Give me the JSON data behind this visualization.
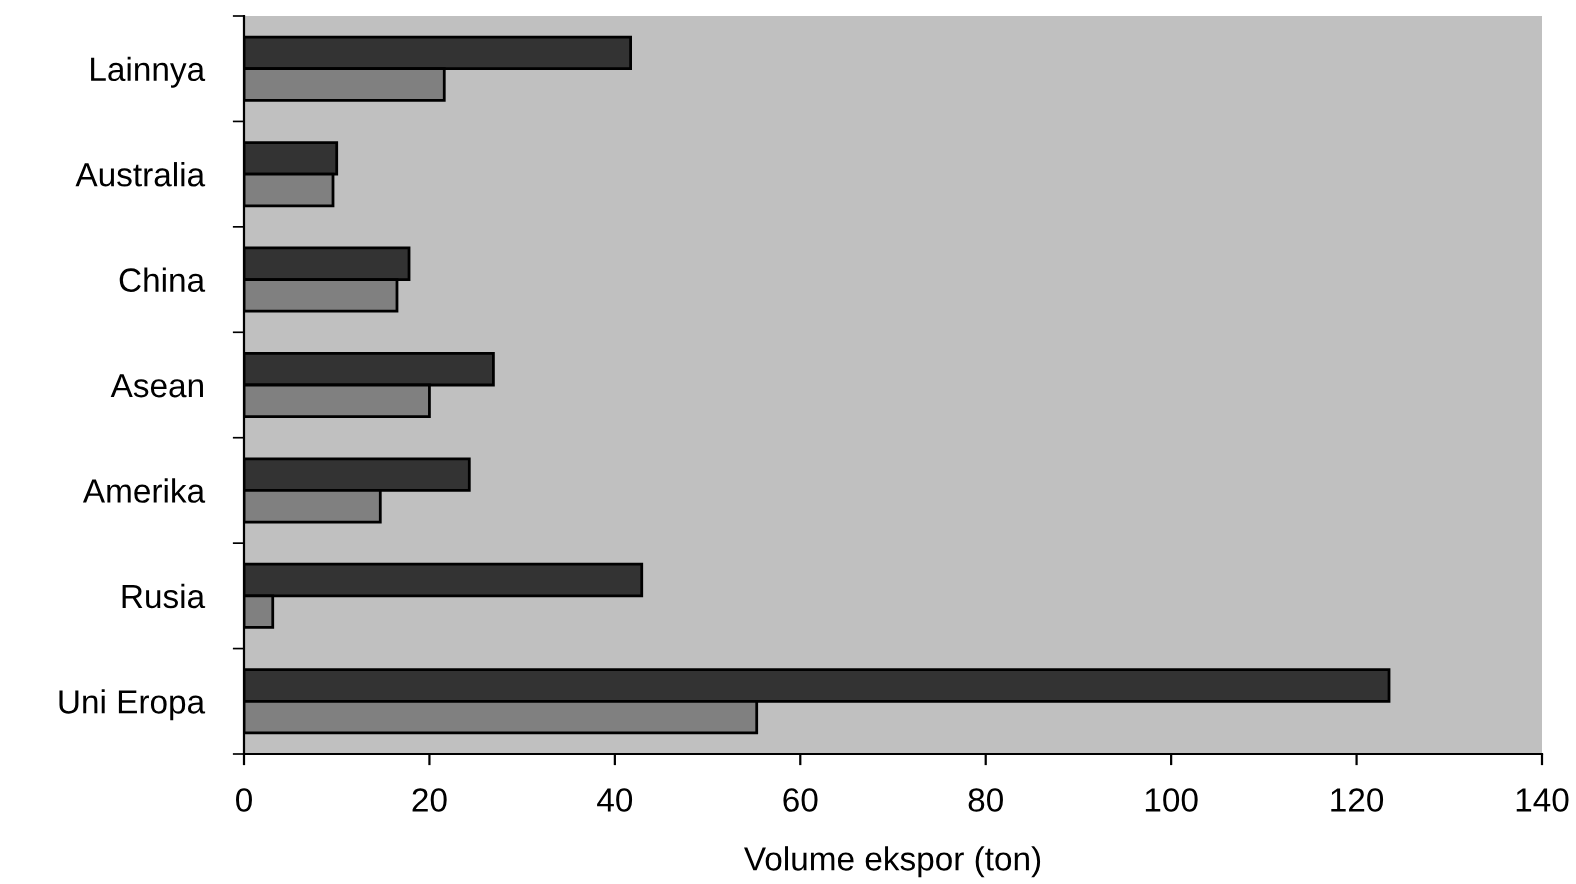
{
  "chart_data": {
    "type": "bar",
    "orientation": "horizontal",
    "xlabel": "Volume ekspor (ton)",
    "categories": [
      "Lainnya",
      "Australia",
      "China",
      "Asean",
      "Amerika",
      "Rusia",
      "Uni Eropa"
    ],
    "series": [
      {
        "color": "#333333",
        "values": [
          41.7,
          10.0,
          17.8,
          26.9,
          24.3,
          42.9,
          123.5
        ]
      },
      {
        "color": "#808080",
        "values": [
          21.6,
          9.6,
          16.5,
          20.0,
          14.7,
          3.1,
          55.3
        ]
      }
    ],
    "xlim": [
      0,
      140
    ],
    "xticks": [
      0,
      20,
      40,
      60,
      80,
      100,
      120,
      140
    ],
    "grid": false
  }
}
